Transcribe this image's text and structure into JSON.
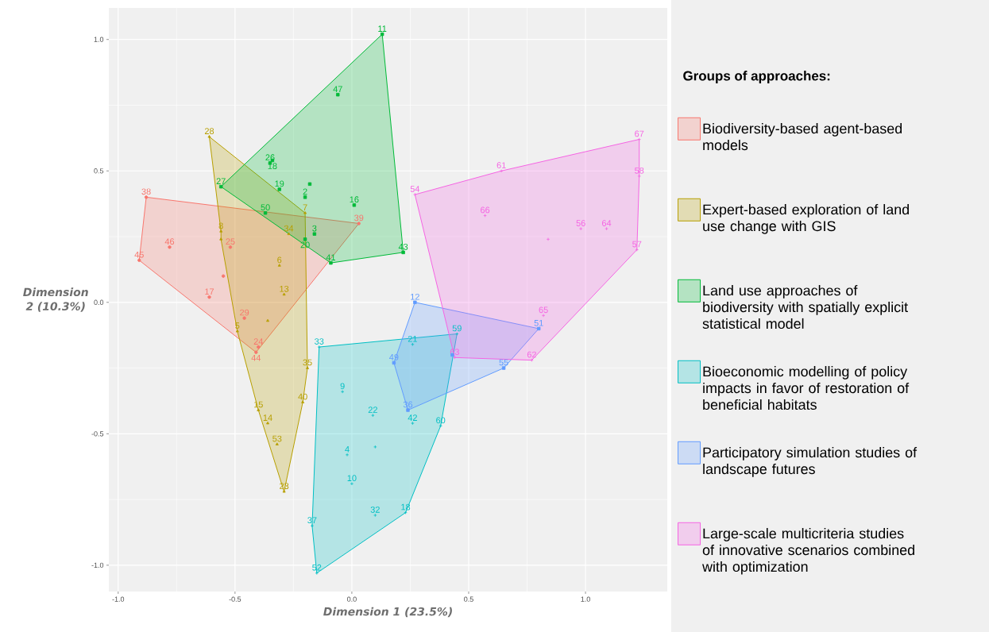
{
  "chart_data": {
    "type": "scatter",
    "xlabel": "Dimension 1 (23.5%)",
    "ylabel": "Dimension 2 (10.3%)",
    "legend_title": "Groups of approaches:",
    "legend": "right",
    "grid": true,
    "xlim": [
      -1.04,
      1.35
    ],
    "ylim": [
      -1.1,
      1.12
    ],
    "xticks": [
      {
        "value": -1,
        "label": "-1.0"
      },
      {
        "value": -0.5,
        "label": "-0.5"
      },
      {
        "value": 0,
        "label": "0.0"
      },
      {
        "value": 0.5,
        "label": "0.5"
      },
      {
        "value": 1,
        "label": "1.0"
      }
    ],
    "yticks": [
      {
        "value": -1,
        "label": "-1.0"
      },
      {
        "value": -0.5,
        "label": "-0.5"
      },
      {
        "value": 0,
        "label": "0.0"
      },
      {
        "value": 0.5,
        "label": "0.5"
      },
      {
        "value": 1,
        "label": "1.0"
      }
    ],
    "series": [
      {
        "type": "area",
        "name": "Biodiversity-based agent-based  models",
        "color": "#f8766d",
        "x": [
          -0.91,
          -0.88,
          0.03,
          -0.41
        ],
        "values": [
          0.16,
          0.4,
          0.3,
          -0.19
        ]
      },
      {
        "type": "area",
        "name": "Expert-based exploration of land use change with GIS",
        "color": "#b79f00",
        "x": [
          -0.61,
          -0.2,
          -0.19,
          -0.21,
          -0.29,
          -0.4,
          -0.49,
          -0.56,
          -0.56
        ],
        "values": [
          0.63,
          0.34,
          -0.25,
          -0.38,
          -0.72,
          -0.41,
          -0.11,
          0.24,
          0.27
        ]
      },
      {
        "type": "area",
        "name": "Land use approaches of biodiversity with spatially explicit statistical model",
        "color": "#00ba38",
        "x": [
          -0.56,
          0.13,
          0.22,
          -0.09
        ],
        "values": [
          0.44,
          1.02,
          0.19,
          0.15
        ]
      },
      {
        "type": "area",
        "name": "Bioeconomic modelling of policy impacts in favor of restoration of beneficial habitats",
        "color": "#00bfc4",
        "x": [
          -0.14,
          0.45,
          0.38,
          0.23,
          -0.15,
          -0.17
        ],
        "values": [
          -0.17,
          -0.12,
          -0.47,
          -0.8,
          -1.03,
          -0.85
        ]
      },
      {
        "type": "area",
        "name": "Participatory simulation studies of landscape futures",
        "color": "#619cff",
        "x": [
          0.27,
          0.8,
          0.65,
          0.24,
          0.18
        ],
        "values": [
          0.0,
          -0.1,
          -0.25,
          -0.41,
          -0.23
        ]
      },
      {
        "type": "area",
        "name": "Large-scale multicriteria studies of innovative scenarios combined with optimization",
        "color": "#f564e3",
        "x": [
          0.27,
          0.64,
          1.23,
          1.23,
          1.22,
          0.77,
          0.44
        ],
        "values": [
          0.41,
          0.5,
          0.62,
          0.48,
          0.2,
          -0.22,
          -0.21
        ]
      },
      {
        "color": "#f8766d",
        "marker": "circle",
        "x": [
          -0.88,
          -0.78,
          -0.91,
          -0.52,
          -0.61,
          -0.46,
          -0.4,
          -0.41,
          0.03
        ],
        "values": [
          0.4,
          0.21,
          0.16,
          0.21,
          0.02,
          -0.06,
          -0.17,
          -0.19,
          0.3
        ]
      },
      {
        "color": "#b79f00",
        "marker": "triangle",
        "x": [
          -0.61,
          -0.56,
          -0.56,
          -0.2,
          -0.27,
          -0.31,
          -0.29,
          -0.49,
          -0.19,
          -0.21,
          -0.4,
          -0.36,
          -0.32,
          -0.29
        ],
        "values": [
          0.63,
          0.27,
          0.24,
          0.34,
          0.26,
          0.14,
          0.03,
          -0.11,
          -0.25,
          -0.38,
          -0.41,
          -0.46,
          -0.54,
          -0.72
        ]
      },
      {
        "color": "#00ba38",
        "marker": "square",
        "x": [
          0.13,
          -0.06,
          -0.35,
          -0.34,
          -0.56,
          -0.31,
          -0.2,
          0.01,
          -0.37,
          -0.16,
          -0.2,
          -0.09,
          0.22
        ],
        "values": [
          1.02,
          0.79,
          0.53,
          0.54,
          0.44,
          0.43,
          0.4,
          0.37,
          0.34,
          0.26,
          0.24,
          0.15,
          0.19
        ]
      },
      {
        "color": "#00bfc4",
        "marker": "cross",
        "x": [
          -0.14,
          0.45,
          0.26,
          -0.04,
          0.09,
          0.26,
          0.38,
          -0.02,
          0.0,
          0.1,
          0.23,
          -0.17,
          -0.15
        ],
        "values": [
          -0.17,
          -0.12,
          -0.16,
          -0.34,
          -0.43,
          -0.46,
          -0.47,
          -0.58,
          -0.69,
          -0.81,
          -0.8,
          -0.85,
          -1.03
        ]
      },
      {
        "color": "#619cff",
        "marker": "square",
        "x": [
          0.27,
          0.8,
          0.65,
          0.43,
          0.18,
          0.24
        ],
        "values": [
          0.0,
          -0.1,
          -0.25,
          -0.2,
          -0.23,
          -0.41
        ]
      },
      {
        "color": "#f564e3",
        "marker": "cross",
        "x": [
          1.23,
          0.64,
          0.27,
          1.23,
          0.57,
          0.98,
          1.09,
          1.22,
          0.82,
          0.77,
          0.44
        ],
        "values": [
          0.62,
          0.5,
          0.41,
          0.48,
          0.33,
          0.28,
          0.28,
          0.2,
          -0.05,
          -0.22,
          -0.21
        ]
      },
      {
        "color": "#f8766d",
        "marker": "circle",
        "x": [
          -0.55
        ],
        "values": [
          0.1
        ]
      },
      {
        "color": "#b79f00",
        "marker": "triangle",
        "x": [
          -0.36
        ],
        "values": [
          -0.07
        ]
      },
      {
        "color": "#00ba38",
        "marker": "square",
        "x": [
          -0.18
        ],
        "values": [
          0.45
        ]
      },
      {
        "color": "#00bfc4",
        "marker": "cross",
        "x": [
          0.1
        ],
        "values": [
          -0.55
        ]
      },
      {
        "color": "#f564e3",
        "marker": "cross",
        "x": [
          0.84
        ],
        "values": [
          0.24
        ]
      }
    ],
    "annotations": [
      {
        "text": "38",
        "x": -0.88,
        "y": 0.4
      },
      {
        "text": "46",
        "x": -0.78,
        "y": 0.21
      },
      {
        "text": "45",
        "x": -0.91,
        "y": 0.16
      },
      {
        "text": "25",
        "x": -0.52,
        "y": 0.21
      },
      {
        "text": "17",
        "x": -0.61,
        "y": 0.02
      },
      {
        "text": "29",
        "x": -0.46,
        "y": -0.06
      },
      {
        "text": "24",
        "x": -0.4,
        "y": -0.17
      },
      {
        "text": "44",
        "x": -0.41,
        "y": -0.19
      },
      {
        "text": "39",
        "x": 0.03,
        "y": 0.3
      },
      {
        "text": "28",
        "x": -0.61,
        "y": 0.63
      },
      {
        "text": "8",
        "x": -0.56,
        "y": 0.27
      },
      {
        "text": "7",
        "x": -0.2,
        "y": 0.34
      },
      {
        "text": "34",
        "x": -0.27,
        "y": 0.26
      },
      {
        "text": "6",
        "x": -0.31,
        "y": 0.14
      },
      {
        "text": "13",
        "x": -0.29,
        "y": 0.03
      },
      {
        "text": "5",
        "x": -0.49,
        "y": -0.11
      },
      {
        "text": "35",
        "x": -0.19,
        "y": -0.25
      },
      {
        "text": "40",
        "x": -0.21,
        "y": -0.38
      },
      {
        "text": "15",
        "x": -0.4,
        "y": -0.41
      },
      {
        "text": "14",
        "x": -0.36,
        "y": -0.46
      },
      {
        "text": "53",
        "x": -0.32,
        "y": -0.54
      },
      {
        "text": "23",
        "x": -0.29,
        "y": -0.72
      },
      {
        "text": "11",
        "x": 0.13,
        "y": 1.02
      },
      {
        "text": "47",
        "x": -0.06,
        "y": 0.79
      },
      {
        "text": "26",
        "x": -0.35,
        "y": 0.53
      },
      {
        "text": "18",
        "x": -0.34,
        "y": 0.54
      },
      {
        "text": "27",
        "x": -0.56,
        "y": 0.44
      },
      {
        "text": "19",
        "x": -0.31,
        "y": 0.43
      },
      {
        "text": "2",
        "x": -0.2,
        "y": 0.4
      },
      {
        "text": "16",
        "x": 0.01,
        "y": 0.37
      },
      {
        "text": "50",
        "x": -0.37,
        "y": 0.34
      },
      {
        "text": "3",
        "x": -0.16,
        "y": 0.26
      },
      {
        "text": "20",
        "x": -0.2,
        "y": 0.24
      },
      {
        "text": "41",
        "x": -0.09,
        "y": 0.15
      },
      {
        "text": "43",
        "x": 0.22,
        "y": 0.19
      },
      {
        "text": "33",
        "x": -0.14,
        "y": -0.17
      },
      {
        "text": "59",
        "x": 0.45,
        "y": -0.12
      },
      {
        "text": "21",
        "x": 0.26,
        "y": -0.16
      },
      {
        "text": "9",
        "x": -0.04,
        "y": -0.34
      },
      {
        "text": "22",
        "x": 0.09,
        "y": -0.43
      },
      {
        "text": "42",
        "x": 0.26,
        "y": -0.46
      },
      {
        "text": "60",
        "x": 0.38,
        "y": -0.47
      },
      {
        "text": "4",
        "x": -0.02,
        "y": -0.58
      },
      {
        "text": "10",
        "x": 0.0,
        "y": -0.69
      },
      {
        "text": "32",
        "x": 0.1,
        "y": -0.81
      },
      {
        "text": "18",
        "x": 0.23,
        "y": -0.8
      },
      {
        "text": "37",
        "x": -0.17,
        "y": -0.85
      },
      {
        "text": "52",
        "x": -0.15,
        "y": -1.03
      },
      {
        "text": "12",
        "x": 0.27,
        "y": 0.0
      },
      {
        "text": "51",
        "x": 0.8,
        "y": -0.1
      },
      {
        "text": "55",
        "x": 0.65,
        "y": -0.25
      },
      {
        "text": "49",
        "x": 0.18,
        "y": -0.23
      },
      {
        "text": "36",
        "x": 0.24,
        "y": -0.41
      },
      {
        "text": "67",
        "x": 1.23,
        "y": 0.62
      },
      {
        "text": "61",
        "x": 0.64,
        "y": 0.5
      },
      {
        "text": "54",
        "x": 0.27,
        "y": 0.41
      },
      {
        "text": "58",
        "x": 1.23,
        "y": 0.48
      },
      {
        "text": "66",
        "x": 0.57,
        "y": 0.33
      },
      {
        "text": "56",
        "x": 0.98,
        "y": 0.28
      },
      {
        "text": "64",
        "x": 1.09,
        "y": 0.28
      },
      {
        "text": "57",
        "x": 1.22,
        "y": 0.2
      },
      {
        "text": "65",
        "x": 0.82,
        "y": -0.05
      },
      {
        "text": "62",
        "x": 0.77,
        "y": -0.22
      },
      {
        "text": "63",
        "x": 0.44,
        "y": -0.21
      }
    ]
  }
}
